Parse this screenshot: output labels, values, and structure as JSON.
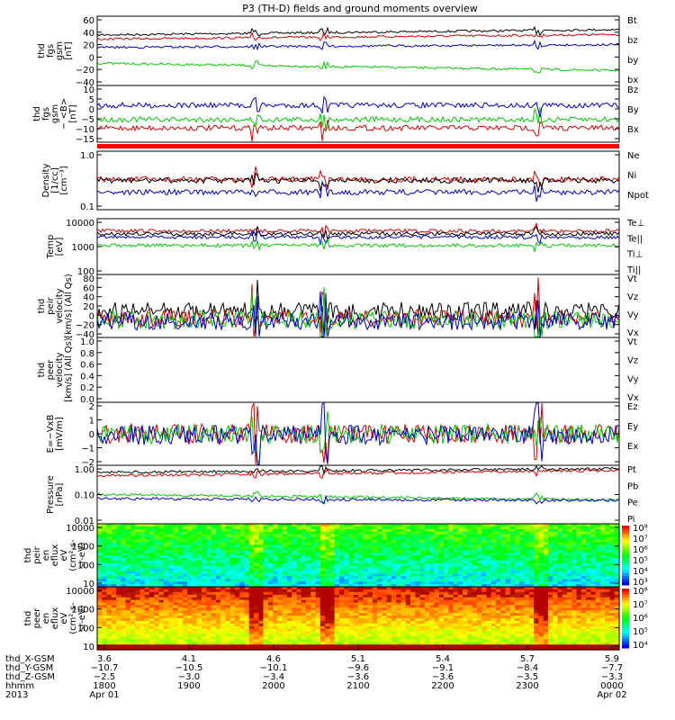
{
  "title": "P3 (TH-D) fields and ground moments overview",
  "panels": [
    {
      "ylabel": [
        "thd",
        "fgs",
        "gsm",
        "[nT]"
      ],
      "ticks": [
        "60",
        "40",
        "20",
        "0",
        "−20",
        "−40"
      ],
      "legend": [
        {
          "text": "Bt",
          "color": "#000000"
        },
        {
          "text": "bz",
          "color": "#dd0000"
        },
        {
          "text": "by",
          "color": "#00cc00"
        },
        {
          "text": "bx",
          "color": "#0000cc"
        }
      ]
    },
    {
      "ylabel": [
        "thd",
        "fgs",
        "gsm",
        "− <B>",
        "[nT]"
      ],
      "ticks": [
        "10",
        "5",
        "0",
        "−5",
        "−10",
        "−15"
      ],
      "legend": [
        {
          "text": "Bz",
          "color": "#dd0000"
        },
        {
          "text": "By",
          "color": "#00cc00"
        },
        {
          "text": "Bx",
          "color": "#0000cc"
        }
      ]
    },
    {
      "ylabel": [
        "Density",
        "[1/cc]",
        "[cm⁻³]"
      ],
      "ticks": [
        "1.0",
        "0.1"
      ],
      "legend": [
        {
          "text": "Ne",
          "color": "#dd0000"
        },
        {
          "text": "Ni",
          "color": "#000000"
        },
        {
          "text": "Npot",
          "color": "#0000cc"
        }
      ]
    },
    {
      "ylabel": [
        "Temp",
        "[eV]"
      ],
      "ticks": [
        "10000",
        "1000",
        "100"
      ],
      "legend": [
        {
          "text": "Te⊥",
          "color": "#dd0000"
        },
        {
          "text": "Te||",
          "color": "#000000"
        },
        {
          "text": "Ti⊥",
          "color": "#0000cc"
        },
        {
          "text": "Ti||",
          "color": "#00cc00"
        }
      ]
    },
    {
      "ylabel": [
        "thd",
        "peir",
        "velocity",
        "[km/s] (All Qs)"
      ],
      "ticks": [
        "80",
        "60",
        "40",
        "20",
        "0",
        "−20",
        "−40"
      ],
      "legend": [
        {
          "text": "Vt",
          "color": "#000000"
        },
        {
          "text": "Vz",
          "color": "#dd0000"
        },
        {
          "text": "Vy",
          "color": "#00cc00"
        },
        {
          "text": "Vx",
          "color": "#0000cc"
        }
      ]
    },
    {
      "ylabel": [
        "thd",
        "peer",
        "velocity",
        "[km/s] (All Qs)"
      ],
      "ticks": [
        "1.0",
        "0.8",
        "0.6",
        "0.4",
        "0.2",
        "0.0"
      ],
      "legend": [
        {
          "text": "Vt",
          "color": "#000000"
        },
        {
          "text": "Vz",
          "color": "#dd0000"
        },
        {
          "text": "Vy",
          "color": "#00cc00"
        },
        {
          "text": "Vx",
          "color": "#0000cc"
        }
      ]
    },
    {
      "ylabel": [
        "E=−VxB",
        "[mV/m]"
      ],
      "ticks": [
        "2",
        "1",
        "0",
        "−1",
        "−2"
      ],
      "legend": [
        {
          "text": "Ez",
          "color": "#dd0000"
        },
        {
          "text": "Ey",
          "color": "#00cc00"
        },
        {
          "text": "Ex",
          "color": "#0000cc"
        }
      ]
    },
    {
      "ylabel": [
        "Pressure",
        "[nPa]"
      ],
      "ticks": [
        "1.00",
        "0.10",
        "0.01"
      ],
      "legend": [
        {
          "text": "Pt",
          "color": "#000000"
        },
        {
          "text": "Pb",
          "color": "#dd0000"
        },
        {
          "text": "Pe",
          "color": "#00cc00"
        },
        {
          "text": "Pi",
          "color": "#0000cc"
        }
      ]
    },
    {
      "ylabel": [
        "thd",
        "peir",
        "en",
        "eflux",
        "eV",
        "(cm²-s-",
        "sr-eV)"
      ],
      "ticks": [
        "10000",
        "1000",
        "100",
        "10"
      ],
      "colorbar": [
        "10⁸",
        "10⁷",
        "10⁶",
        "10⁵",
        "10⁴",
        "10³"
      ]
    },
    {
      "ylabel": [
        "thd",
        "peer",
        "en",
        "eflux",
        "eV",
        "(cm²-s-",
        "sr-eV)"
      ],
      "ticks": [
        "10000",
        "1000",
        "100",
        "10"
      ],
      "colorbar": [
        "10⁸",
        "10⁷",
        "10⁶",
        "10⁵",
        "10⁴"
      ]
    }
  ],
  "time_axis": {
    "row_labels": [
      "thd_X-GSM",
      "thd_Y-GSM",
      "thd_Z-GSM",
      "hhmm",
      "2013"
    ],
    "columns": [
      {
        "x": "3.6",
        "y": "−10.7",
        "z": "−2.5",
        "hhmm": "1800",
        "date": "Apr 01"
      },
      {
        "x": "4.1",
        "y": "−10.5",
        "z": "−3.0",
        "hhmm": "1900",
        "date": ""
      },
      {
        "x": "4.6",
        "y": "−10.1",
        "z": "−3.4",
        "hhmm": "2000",
        "date": ""
      },
      {
        "x": "5.1",
        "y": "−9.6",
        "z": "−3.6",
        "hhmm": "2100",
        "date": ""
      },
      {
        "x": "5.4",
        "y": "−9.1",
        "z": "−3.6",
        "hhmm": "2200",
        "date": ""
      },
      {
        "x": "5.7",
        "y": "−8.4",
        "z": "−3.5",
        "hhmm": "2300",
        "date": ""
      },
      {
        "x": "5.9",
        "y": "−7.7",
        "z": "−3.3",
        "hhmm": "0000",
        "date": "Apr 02"
      }
    ]
  },
  "chart_data": [
    {
      "type": "line",
      "panel": "fgs gsm",
      "series": [
        {
          "name": "Bt",
          "levels": [
            30,
            33,
            36,
            42
          ]
        },
        {
          "name": "bz",
          "levels": [
            27,
            28,
            30,
            34
          ]
        },
        {
          "name": "by",
          "levels": [
            -7,
            -12,
            -17,
            -22
          ]
        },
        {
          "name": "bx",
          "levels": [
            12,
            14,
            15,
            17
          ]
        }
      ],
      "x": [
        "1800",
        "2400"
      ],
      "ylim": [
        -40,
        60
      ]
    },
    {
      "type": "line",
      "panel": "fgs gsm − <B>",
      "series": [
        {
          "name": "Bz",
          "level": -6
        },
        {
          "name": "By",
          "level": -3
        },
        {
          "name": "Bx",
          "level": 3
        }
      ],
      "ylim": [
        -17,
        10
      ]
    },
    {
      "type": "line",
      "panel": "Density",
      "series": [
        {
          "name": "Ne",
          "level": 0.3
        },
        {
          "name": "Ni",
          "level": 0.32
        },
        {
          "name": "Npot",
          "level": 0.2
        }
      ],
      "yscale": "log",
      "ylim": [
        0.1,
        1.0
      ]
    },
    {
      "type": "line",
      "panel": "Temp",
      "series": [
        {
          "name": "Te⊥",
          "level": 3500
        },
        {
          "name": "Te||",
          "level": 3000
        },
        {
          "name": "Ti⊥",
          "level": 2500
        },
        {
          "name": "Ti||",
          "level": 1500
        }
      ],
      "yscale": "log",
      "ylim": [
        100,
        10000
      ]
    },
    {
      "type": "line",
      "panel": "peir velocity",
      "series": [
        {
          "name": "Vt",
          "level": 20
        },
        {
          "name": "Vz",
          "level": 5
        },
        {
          "name": "Vy",
          "level": 0
        },
        {
          "name": "Vx",
          "level": 0
        }
      ],
      "ylim": [
        -40,
        80
      ]
    },
    {
      "type": "line",
      "panel": "peer velocity",
      "series": [],
      "ylim": [
        0,
        1
      ]
    },
    {
      "type": "line",
      "panel": "E=−VxB",
      "series": [
        {
          "name": "Ez",
          "level": 0
        },
        {
          "name": "Ey",
          "level": 0
        },
        {
          "name": "Ex",
          "level": 0
        }
      ],
      "ylim": [
        -2,
        2
      ]
    },
    {
      "type": "line",
      "panel": "Pressure",
      "series": [
        {
          "name": "Pt",
          "level": 0.5
        },
        {
          "name": "Pb",
          "level": 0.35
        },
        {
          "name": "Pe",
          "level": 0.11
        },
        {
          "name": "Pi",
          "level": 0.08
        }
      ],
      "yscale": "log",
      "ylim": [
        0.01,
        1.0
      ]
    },
    {
      "type": "heatmap",
      "panel": "peir en eflux",
      "yscale": "log",
      "ylim": [
        10,
        20000
      ]
    },
    {
      "type": "heatmap",
      "panel": "peer en eflux",
      "yscale": "log",
      "ylim": [
        10,
        20000
      ]
    }
  ]
}
